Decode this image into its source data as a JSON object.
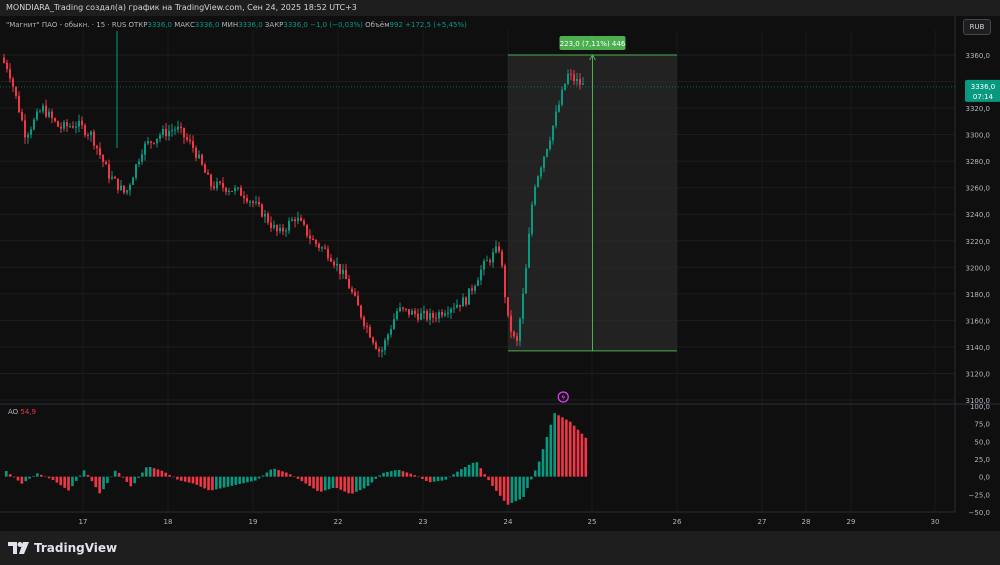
{
  "topbar": {
    "text": "MONDIARA_Trading создал(а) график на TradingView.com, Сен 24, 2025 18:52 UTC+3"
  },
  "legend": {
    "symbol": "\"Магнит\" ПАО - обыкн. · 15 · RUS",
    "open_label": "ОТКР",
    "open": "3336,0",
    "high_label": "МАКС",
    "high": "3336,0",
    "low_label": "МИН",
    "low": "3336,0",
    "close_label": "ЗАКР",
    "close": "3336,0",
    "change": "−1,0 (−0,03%)",
    "volume_label": "Объём",
    "volume": "992",
    "volume_change": "+172,5 (+5,45%)"
  },
  "currency": "RUB",
  "price_axis": {
    "ticks": [
      "3360,0",
      "3340,0",
      "3320,0",
      "3300,0",
      "3280,0",
      "3260,0",
      "3240,0",
      "3220,0",
      "3200,0",
      "3180,0",
      "3160,0",
      "3140,0",
      "3120,0",
      "3100,0"
    ],
    "last_price": "3336,0",
    "countdown": "07:14"
  },
  "ao_axis": {
    "ticks": [
      "100,0",
      "75,0",
      "50,0",
      "25,0",
      "0,0",
      "−25,0",
      "−50,0"
    ]
  },
  "ao": {
    "label": "AO",
    "value": "54,9"
  },
  "time_axis": {
    "ticks": [
      "17",
      "18",
      "19",
      "22",
      "23",
      "24",
      "25",
      "26",
      "27",
      "28",
      "29",
      "30"
    ]
  },
  "measure": {
    "label": "223,0 (7,11%) 446"
  },
  "brand": "TradingView",
  "colors": {
    "up": "#089981",
    "down": "#f23645",
    "measure": "#4caf50",
    "background": "#0f0f0f"
  },
  "chart_data": {
    "type": "candlestick",
    "ylim": [
      3100,
      3380
    ],
    "close_path": [
      {
        "x": "16 09:00",
        "y": 3358
      },
      {
        "x": "16 10:00",
        "y": 3350
      },
      {
        "x": "16 12:00",
        "y": 3300
      },
      {
        "x": "16 14:00",
        "y": 3320
      },
      {
        "x": "16 16:00",
        "y": 3305
      },
      {
        "x": "16 18:00",
        "y": 3308
      },
      {
        "x": "17 10:00",
        "y": 3300
      },
      {
        "x": "17 12:00",
        "y": 3270
      },
      {
        "x": "17 14:00",
        "y": 3255
      },
      {
        "x": "17 16:00",
        "y": 3290
      },
      {
        "x": "17 18:00",
        "y": 3300
      },
      {
        "x": "18 10:00",
        "y": 3305
      },
      {
        "x": "18 12:00",
        "y": 3290
      },
      {
        "x": "18 14:00",
        "y": 3262
      },
      {
        "x": "18 16:00",
        "y": 3260
      },
      {
        "x": "18 18:00",
        "y": 3255
      },
      {
        "x": "19 10:00",
        "y": 3242
      },
      {
        "x": "19 12:00",
        "y": 3225
      },
      {
        "x": "19 14:00",
        "y": 3238
      },
      {
        "x": "19 16:00",
        "y": 3220
      },
      {
        "x": "19 18:00",
        "y": 3210
      },
      {
        "x": "22 10:00",
        "y": 3190
      },
      {
        "x": "22 12:00",
        "y": 3160
      },
      {
        "x": "22 14:00",
        "y": 3135
      },
      {
        "x": "22 16:00",
        "y": 3168
      },
      {
        "x": "22 18:00",
        "y": 3165
      },
      {
        "x": "23 10:00",
        "y": 3162
      },
      {
        "x": "23 12:00",
        "y": 3170
      },
      {
        "x": "23 14:00",
        "y": 3175
      },
      {
        "x": "23 16:00",
        "y": 3200
      },
      {
        "x": "23 18:00",
        "y": 3215
      },
      {
        "x": "24 09:00",
        "y": 3160
      },
      {
        "x": "24 10:00",
        "y": 3140
      },
      {
        "x": "24 11:00",
        "y": 3190
      },
      {
        "x": "24 12:00",
        "y": 3260
      },
      {
        "x": "24 14:00",
        "y": 3300
      },
      {
        "x": "24 16:00",
        "y": 3345
      },
      {
        "x": "24 18:00",
        "y": 3336
      }
    ],
    "ao_values": [
      8,
      -10,
      5,
      -5,
      -20,
      10,
      -25,
      10,
      -15,
      15,
      8,
      -5,
      -10,
      -20,
      -15,
      -10,
      -5,
      12,
      5,
      -8,
      -22,
      -15,
      -25,
      -15,
      5,
      10,
      3,
      -8,
      -5,
      10,
      22,
      -12,
      -40,
      -30,
      20,
      90,
      78,
      55
    ]
  }
}
